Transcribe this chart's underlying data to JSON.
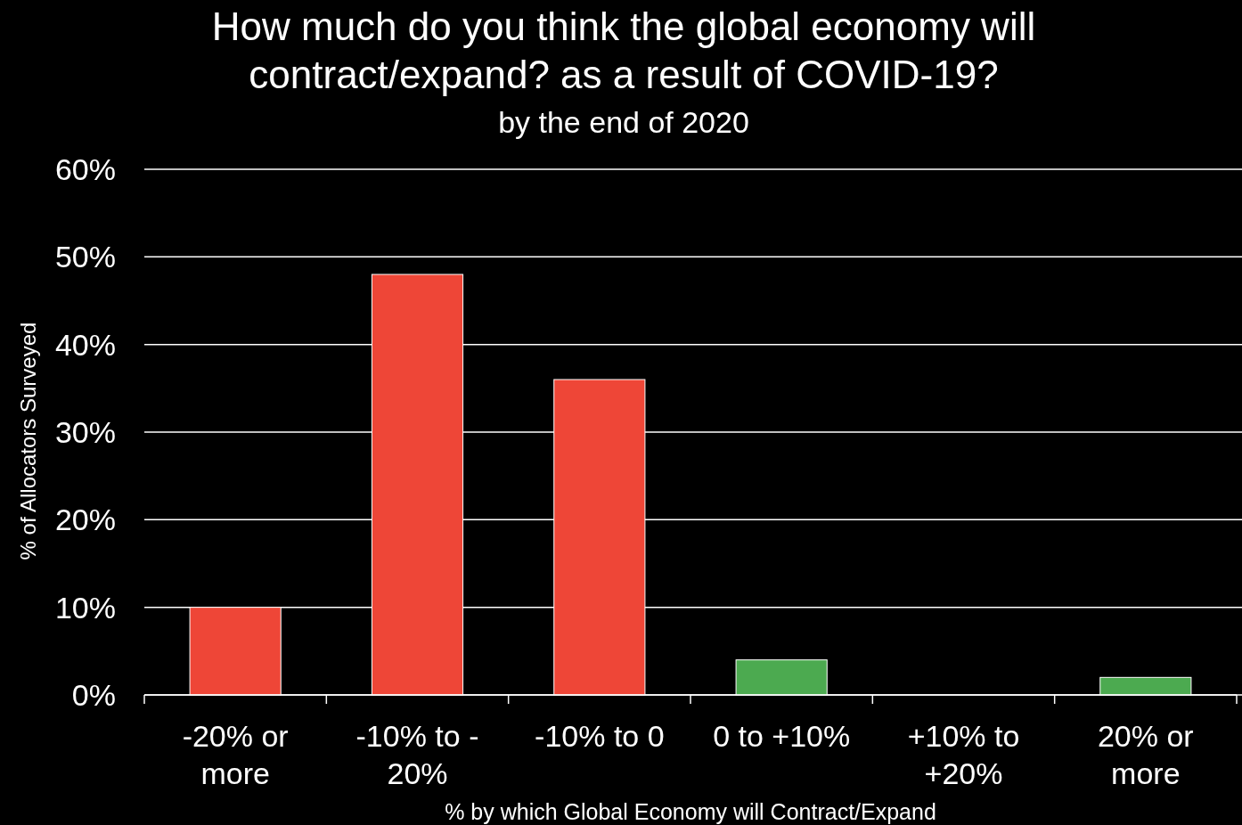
{
  "chart_data": {
    "type": "bar",
    "title": "How much do you think the global economy will contract/expand? as a result of COVID-19?",
    "subtitle": "by the end of 2020",
    "xlabel": "% by which Global Economy will Contract/Expand",
    "ylabel": "% of Allocators Surveyed",
    "categories": [
      "-20% or more",
      "-10% to - 20%",
      "-10% to 0",
      "0 to +10%",
      "+10% to +20%",
      "20% or more"
    ],
    "values": [
      10,
      48,
      36,
      4,
      0,
      2
    ],
    "colors": [
      "#ee4637",
      "#ee4637",
      "#ee4637",
      "#4caa50",
      "#4caa50",
      "#4caa50"
    ],
    "ylim": [
      0,
      60
    ],
    "yticks": [
      {
        "value": 0,
        "label": "0%"
      },
      {
        "value": 10,
        "label": "10%"
      },
      {
        "value": 20,
        "label": "20%"
      },
      {
        "value": 30,
        "label": "30%"
      },
      {
        "value": 40,
        "label": "40%"
      },
      {
        "value": 50,
        "label": "50%"
      },
      {
        "value": 60,
        "label": "60%"
      }
    ],
    "grid": "y"
  }
}
